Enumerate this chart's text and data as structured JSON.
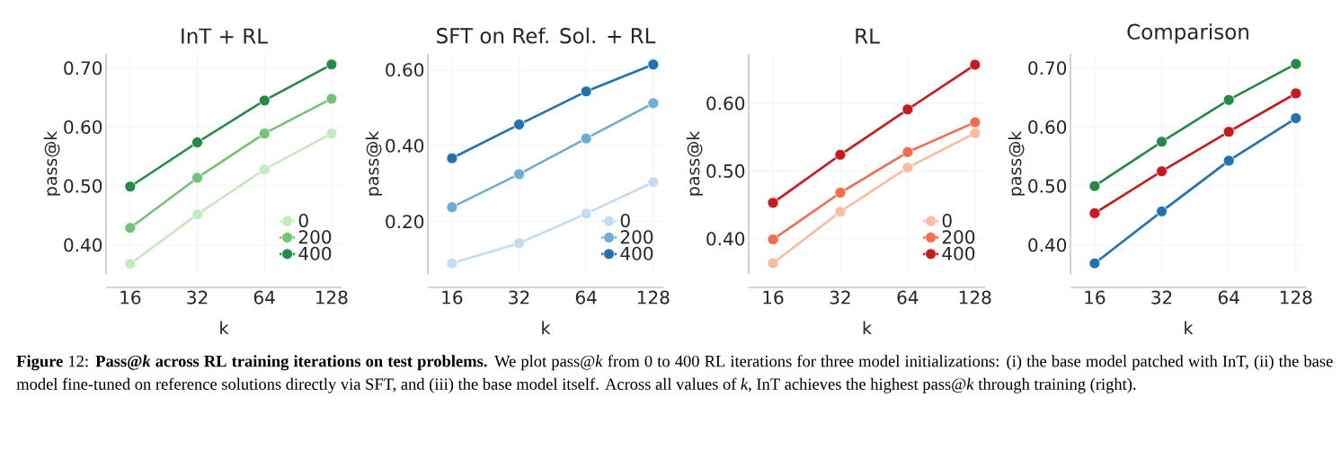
{
  "chart_data": [
    {
      "type": "line",
      "title": "InT + RL",
      "xlabel": "k",
      "ylabel": "pass@k",
      "categories": [
        "16",
        "32",
        "64",
        "128"
      ],
      "series": [
        {
          "name": "0",
          "color": "#c7e9c0",
          "values": [
            0.368,
            0.452,
            0.528,
            0.589
          ]
        },
        {
          "name": "200",
          "color": "#74c476",
          "values": [
            0.429,
            0.514,
            0.589,
            0.648
          ]
        },
        {
          "name": "400",
          "color": "#238b45",
          "values": [
            0.499,
            0.574,
            0.645,
            0.706
          ]
        }
      ],
      "ylim": [
        0.351,
        0.724
      ],
      "yticks": [
        {
          "value": 0.4,
          "label": "0.40"
        },
        {
          "value": 0.5,
          "label": "0.50"
        },
        {
          "value": 0.6,
          "label": "0.60"
        },
        {
          "value": 0.7,
          "label": "0.70"
        }
      ],
      "grid": true,
      "legend": "bottom right",
      "marker": "circle",
      "line_style": "solid"
    },
    {
      "type": "line",
      "title": "SFT on Ref. Sol. + RL",
      "xlabel": "k",
      "ylabel": "pass@k",
      "categories": [
        "16",
        "32",
        "64",
        "128"
      ],
      "series": [
        {
          "name": "0",
          "color": "#c6dbef",
          "values": [
            0.09,
            0.143,
            0.221,
            0.304
          ]
        },
        {
          "name": "200",
          "color": "#6baed6",
          "values": [
            0.238,
            0.325,
            0.419,
            0.512
          ]
        },
        {
          "name": "400",
          "color": "#2171b5",
          "values": [
            0.367,
            0.456,
            0.543,
            0.614
          ]
        }
      ],
      "ylim": [
        0.062,
        0.642
      ],
      "yticks": [
        {
          "value": 0.2,
          "label": "0.20"
        },
        {
          "value": 0.4,
          "label": "0.40"
        },
        {
          "value": 0.6,
          "label": "0.60"
        }
      ],
      "grid": true,
      "legend": "bottom right",
      "marker": "circle",
      "line_style": "solid"
    },
    {
      "type": "line",
      "title": "RL",
      "xlabel": "k",
      "ylabel": "pass@k",
      "categories": [
        "16",
        "32",
        "64",
        "128"
      ],
      "series": [
        {
          "name": "0",
          "color": "#fcbba1",
          "values": [
            0.364,
            0.44,
            0.505,
            0.556
          ]
        },
        {
          "name": "200",
          "color": "#fb6a4a",
          "values": [
            0.399,
            0.468,
            0.528,
            0.572
          ]
        },
        {
          "name": "400",
          "color": "#cb181d",
          "values": [
            0.453,
            0.524,
            0.591,
            0.657
          ]
        }
      ],
      "ylim": [
        0.348,
        0.673
      ],
      "yticks": [
        {
          "value": 0.4,
          "label": "0.40"
        },
        {
          "value": 0.5,
          "label": "0.50"
        },
        {
          "value": 0.6,
          "label": "0.60"
        }
      ],
      "grid": true,
      "legend": "bottom right",
      "marker": "circle",
      "line_style": "solid"
    },
    {
      "type": "line",
      "title": "Comparison",
      "xlabel": "k",
      "ylabel": "pass@k",
      "categories": [
        "16",
        "32",
        "64",
        "128"
      ],
      "series": [
        {
          "color": "#238b45",
          "values": [
            0.5,
            0.575,
            0.646,
            0.707
          ]
        },
        {
          "color": "#cb181d",
          "values": [
            0.454,
            0.525,
            0.592,
            0.657
          ]
        },
        {
          "color": "#2171b5",
          "values": [
            0.369,
            0.457,
            0.543,
            0.615
          ]
        }
      ],
      "ylim": [
        0.351,
        0.724
      ],
      "yticks": [
        {
          "value": 0.4,
          "label": "0.40"
        },
        {
          "value": 0.5,
          "label": "0.50"
        },
        {
          "value": 0.6,
          "label": "0.60"
        },
        {
          "value": 0.7,
          "label": "0.70"
        }
      ],
      "grid": true,
      "marker": "circle",
      "line_style": "solid",
      "annotations": [
        "**Figure** 12: **Pass@*k* across RL training iterations on test problems.** We plot pass@*k* from 0 to 400 RL iterations for three model initializations: (i) the base model patched with InT, (ii) the base model fine-tuned on reference solutions directly via SFT, and (iii) the base model itself. Across all values of *k*, InT achieves the highest pass@*k* through training (right)."
      ]
    }
  ]
}
